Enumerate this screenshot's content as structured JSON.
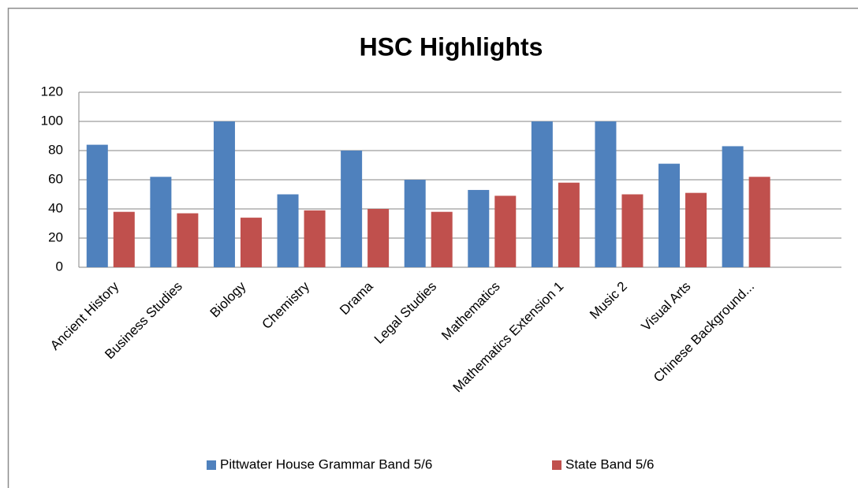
{
  "chart_data": {
    "type": "bar",
    "title": "HSC Highlights",
    "categories": [
      "Ancient History",
      "Business Studies",
      "Biology",
      "Chemistry",
      "Drama",
      "Legal Studies",
      "Mathematics",
      "Mathematics Extension 1",
      "Music 2",
      "Visual Arts",
      "Chinese Background...",
      null
    ],
    "series": [
      {
        "name": "Pittwater House Grammar Band 5/6",
        "color": "#4f81bd",
        "values": [
          84,
          62,
          100,
          50,
          80,
          60,
          53,
          100,
          100,
          71,
          83,
          null
        ]
      },
      {
        "name": "State Band 5/6",
        "color": "#c0504d",
        "values": [
          38,
          37,
          34,
          39,
          40,
          38,
          49,
          58,
          50,
          51,
          62,
          null
        ]
      }
    ],
    "ylim": [
      0,
      120
    ],
    "yticks": [
      0,
      20,
      40,
      60,
      80,
      100,
      120
    ],
    "grid": true,
    "legend": "bottom"
  }
}
